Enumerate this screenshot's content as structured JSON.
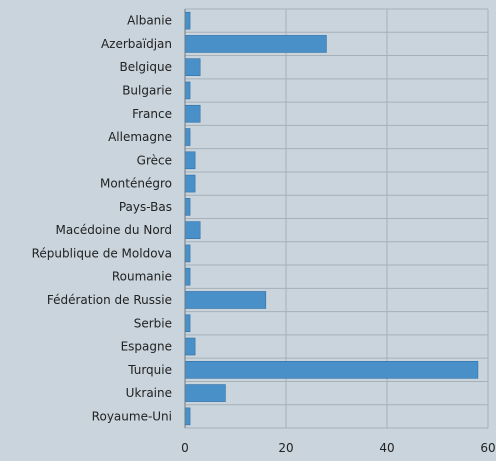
{
  "colors": {
    "background": "#c9d4dc",
    "bar": "#4a90c8",
    "bar_edge": "#2f6fa5",
    "grid": "#a6b0b8",
    "text": "#222222"
  },
  "chart_data": {
    "type": "bar",
    "orientation": "horizontal",
    "title": "",
    "xlabel": "",
    "ylabel": "",
    "xlim": [
      0,
      60
    ],
    "x_ticks": [
      0,
      20,
      40,
      60
    ],
    "grid": true,
    "legend": "none",
    "categories": [
      "Albanie",
      "Azerbaïdjan",
      "Belgique",
      "Bulgarie",
      "France",
      "Allemagne",
      "Grèce",
      "Monténégro",
      "Pays-Bas",
      "Macédoine du Nord",
      "République de Moldova",
      "Roumanie",
      "Fédération de Russie",
      "Serbie",
      "Espagne",
      "Turquie",
      "Ukraine",
      "Royaume-Uni"
    ],
    "values": [
      1,
      28,
      3,
      1,
      3,
      1,
      2,
      2,
      1,
      3,
      1,
      1,
      16,
      1,
      2,
      58,
      8,
      1
    ]
  }
}
